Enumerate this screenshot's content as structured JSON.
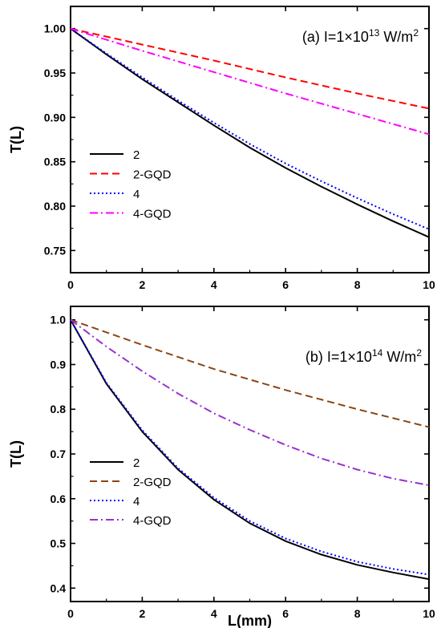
{
  "chart_data": [
    {
      "type": "line",
      "panel": "a",
      "title_prefix": "(a) I=1×10",
      "title_exp": "13",
      "title_unit": " W/m",
      "title_unit_exp": "2",
      "ylabel": "T(L)",
      "xlabel": "",
      "xlim": [
        0,
        10
      ],
      "ylim": [
        0.725,
        1.025
      ],
      "xticks": [
        0,
        2,
        4,
        6,
        8,
        10
      ],
      "xtick_labels": [
        "0",
        "2",
        "4",
        "6",
        "8",
        "10"
      ],
      "yticks": [
        0.75,
        0.8,
        0.85,
        0.9,
        0.95,
        1.0
      ],
      "ytick_labels": [
        "0.75",
        "0.80",
        "0.85",
        "0.90",
        "0.95",
        "1.00"
      ],
      "legend_position": "left",
      "series": [
        {
          "name": "2",
          "color": "#000000",
          "dash": "solid",
          "x": [
            0,
            1,
            2,
            3,
            4,
            5,
            6,
            7,
            8,
            9,
            10
          ],
          "y": [
            1.0,
            0.971,
            0.943,
            0.917,
            0.891,
            0.866,
            0.843,
            0.822,
            0.802,
            0.783,
            0.765
          ]
        },
        {
          "name": "2-GQD",
          "color": "#ff0000",
          "dash": "dash",
          "x": [
            0,
            2,
            4,
            6,
            8,
            10
          ],
          "y": [
            1.0,
            0.982,
            0.964,
            0.945,
            0.927,
            0.91
          ]
        },
        {
          "name": "4",
          "color": "#0000ff",
          "dash": "dot",
          "x": [
            0,
            1,
            2,
            3,
            4,
            5,
            6,
            7,
            8,
            9,
            10
          ],
          "y": [
            1.0,
            0.972,
            0.945,
            0.919,
            0.894,
            0.87,
            0.848,
            0.828,
            0.809,
            0.791,
            0.774
          ]
        },
        {
          "name": "4-GQD",
          "color": "#ff00ff",
          "dash": "dashdot",
          "x": [
            0,
            2,
            4,
            6,
            8,
            10
          ],
          "y": [
            1.0,
            0.975,
            0.951,
            0.927,
            0.904,
            0.881
          ]
        }
      ]
    },
    {
      "type": "line",
      "panel": "b",
      "title_prefix": "(b) I=1×10",
      "title_exp": "14",
      "title_unit": " W/m",
      "title_unit_exp": "2",
      "ylabel": "T(L)",
      "xlabel": "L(mm)",
      "xlim": [
        0,
        10
      ],
      "ylim": [
        0.37,
        1.03
      ],
      "xticks": [
        0,
        2,
        4,
        6,
        8,
        10
      ],
      "xtick_labels": [
        "0",
        "2",
        "4",
        "6",
        "8",
        "10"
      ],
      "yticks": [
        0.4,
        0.5,
        0.6,
        0.7,
        0.8,
        0.9,
        1.0
      ],
      "ytick_labels": [
        "0.4",
        "0.5",
        "0.6",
        "0.7",
        "0.8",
        "0.9",
        "1.0"
      ],
      "legend_position": "left",
      "series": [
        {
          "name": "2",
          "color": "#000000",
          "dash": "solid",
          "x": [
            0,
            1,
            2,
            3,
            4,
            5,
            6,
            7,
            8,
            9,
            10
          ],
          "y": [
            1.0,
            0.857,
            0.75,
            0.665,
            0.598,
            0.545,
            0.505,
            0.475,
            0.452,
            0.435,
            0.42
          ]
        },
        {
          "name": "2-GQD",
          "color": "#8b4513",
          "dash": "dash",
          "x": [
            0,
            2,
            4,
            6,
            8,
            10
          ],
          "y": [
            1.0,
            0.944,
            0.89,
            0.843,
            0.8,
            0.76
          ]
        },
        {
          "name": "4",
          "color": "#0000ff",
          "dash": "dot",
          "x": [
            0,
            1,
            2,
            3,
            4,
            5,
            6,
            7,
            8,
            9,
            10
          ],
          "y": [
            1.0,
            0.859,
            0.753,
            0.668,
            0.602,
            0.55,
            0.511,
            0.482,
            0.459,
            0.443,
            0.43
          ]
        },
        {
          "name": "4-GQD",
          "color": "#9932cc",
          "dash": "dashdot",
          "x": [
            0,
            1,
            2,
            3,
            4,
            5,
            6,
            7,
            8,
            9,
            10
          ],
          "y": [
            1.0,
            0.94,
            0.885,
            0.835,
            0.791,
            0.754,
            0.72,
            0.69,
            0.665,
            0.645,
            0.63
          ]
        }
      ]
    }
  ]
}
